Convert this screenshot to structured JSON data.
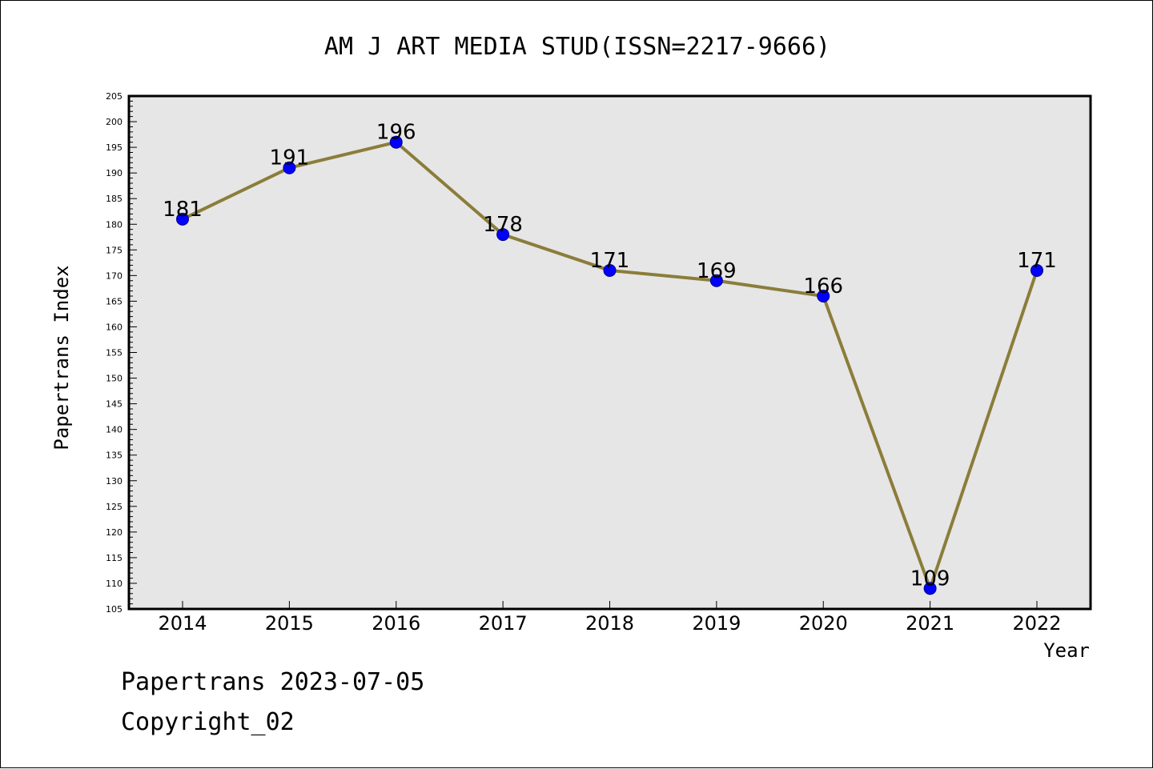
{
  "colors": {
    "plot_background": "#e6e6e6",
    "line": "#8b7d3a",
    "marker_fill": "#0000ff",
    "marker_stroke": "#00008b",
    "text": "#000000"
  },
  "footer": {
    "line1": "Papertrans 2023-07-05",
    "line2": "Copyright_02"
  },
  "chart_data": {
    "type": "line",
    "title": "AM J ART MEDIA STUD(ISSN=2217-9666)",
    "xlabel": "Year",
    "ylabel": "Papertrans Index",
    "categories": [
      "2014",
      "2015",
      "2016",
      "2017",
      "2018",
      "2019",
      "2020",
      "2021",
      "2022"
    ],
    "values": [
      181,
      191,
      196,
      178,
      171,
      169,
      166,
      109,
      171
    ],
    "ylim": [
      105,
      205
    ],
    "y_major_step": 5,
    "y_minor_step": 1,
    "grid": false,
    "data_labels": true
  }
}
